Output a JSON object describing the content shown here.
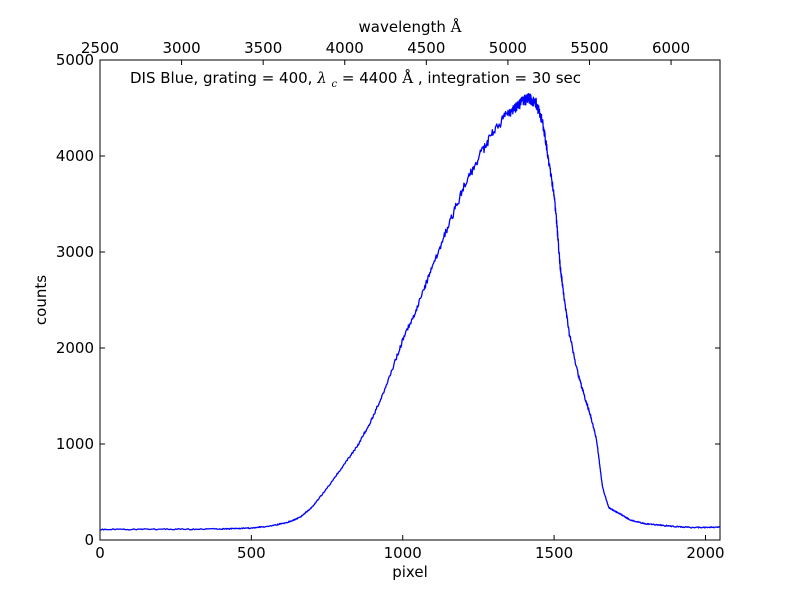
{
  "chart_data": {
    "type": "line",
    "title": "",
    "annotation": {
      "prefix": "DIS Blue, grating = 400, ",
      "lambda_symbol": "λ",
      "lambda_subscript": "c",
      "middle": " = 4400",
      "angstrom": "Å",
      "suffix": ", integration = 30 sec"
    },
    "xlabel": "pixel",
    "ylabel": "counts",
    "top_xlabel_text": "wavelength ",
    "top_xlabel_unit": "Å",
    "xlim": [
      0,
      2048
    ],
    "ylim": [
      0,
      5000
    ],
    "xticks": [
      0,
      500,
      1000,
      1500,
      2000
    ],
    "xtick_labels": [
      "0",
      "500",
      "1000",
      "1500",
      "2000"
    ],
    "yticks": [
      0,
      1000,
      2000,
      3000,
      4000,
      5000
    ],
    "ytick_labels": [
      "0",
      "1000",
      "2000",
      "3000",
      "4000",
      "5000"
    ],
    "top_xlim": [
      2500,
      6300
    ],
    "top_xticks": [
      2500,
      3000,
      3500,
      4000,
      4500,
      5000,
      5500,
      6000
    ],
    "top_xtick_labels": [
      "2500",
      "3000",
      "3500",
      "4000",
      "4500",
      "5000",
      "5500",
      "6000"
    ],
    "grid": false,
    "legend": "none",
    "series": [
      {
        "color": "#0000ff",
        "x": [
          0,
          100,
          200,
          300,
          400,
          450,
          500,
          550,
          600,
          630,
          660,
          700,
          750,
          800,
          850,
          900,
          950,
          1000,
          1050,
          1100,
          1150,
          1200,
          1250,
          1300,
          1350,
          1380,
          1400,
          1420,
          1440,
          1460,
          1480,
          1500,
          1510,
          1520,
          1530,
          1550,
          1580,
          1600,
          1620,
          1640,
          1660,
          1680,
          1700,
          1720,
          1750,
          1800,
          1850,
          1900,
          1950,
          2000,
          2048
        ],
        "y": [
          110,
          110,
          112,
          113,
          116,
          118,
          125,
          140,
          170,
          195,
          235,
          340,
          540,
          760,
          975,
          1270,
          1640,
          2080,
          2440,
          2870,
          3270,
          3660,
          3980,
          4260,
          4450,
          4520,
          4580,
          4600,
          4550,
          4380,
          4000,
          3600,
          3250,
          2850,
          2600,
          2150,
          1720,
          1500,
          1300,
          1050,
          550,
          340,
          300,
          270,
          210,
          170,
          155,
          140,
          130,
          130,
          135
        ]
      }
    ]
  }
}
